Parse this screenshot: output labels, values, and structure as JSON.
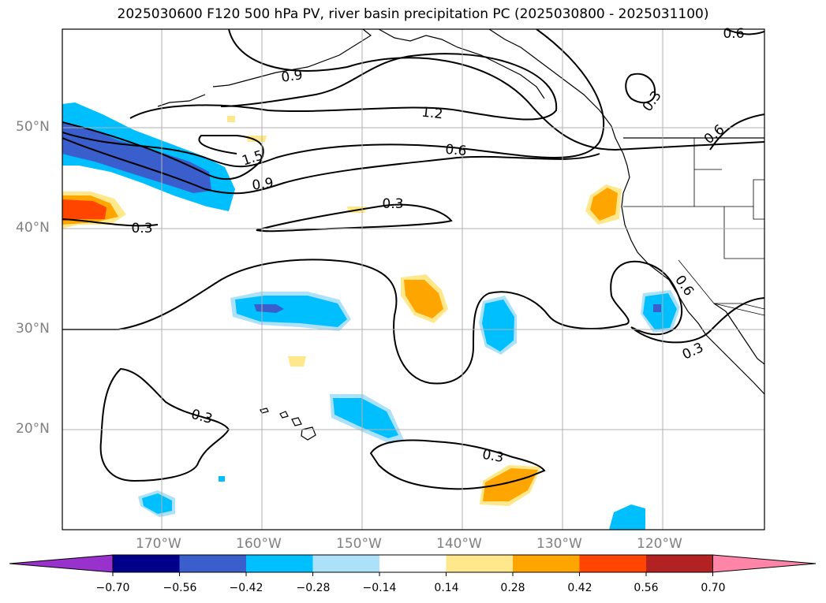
{
  "map": {
    "title": "2025030600 F120 500 hPa PV, river basin precipitation PC (2025030800 - 2025031100)",
    "lat_labels": [
      "50°N",
      "40°N",
      "30°N",
      "20°N"
    ],
    "lon_labels": [
      "170°W",
      "160°W",
      "150°W",
      "140°W",
      "130°W",
      "120°W"
    ],
    "contour_labels": [
      "0.9",
      "1.2",
      "0.6",
      "1.5",
      "0.9",
      "0.3",
      "0.3",
      "0.3",
      "0.3",
      "0.3",
      "0.3",
      "0.6",
      "0.6",
      "0.6"
    ],
    "colorbar": {
      "tick_labels": [
        "−0.70",
        "−0.56",
        "−0.42",
        "−0.28",
        "−0.14",
        "0.14",
        "0.28",
        "0.42",
        "0.56",
        "0.70"
      ],
      "colors": [
        "#9932CC",
        "#00008B",
        "#3A5FCD",
        "#00BFFF",
        "#ADE1FA",
        "#FFFFFF",
        "#FFE88C",
        "#FFA500",
        "#FF4500",
        "#B22222",
        "#FF85A8"
      ]
    },
    "land_color": "#ffffff",
    "grid_color": "#b0b0b0"
  }
}
